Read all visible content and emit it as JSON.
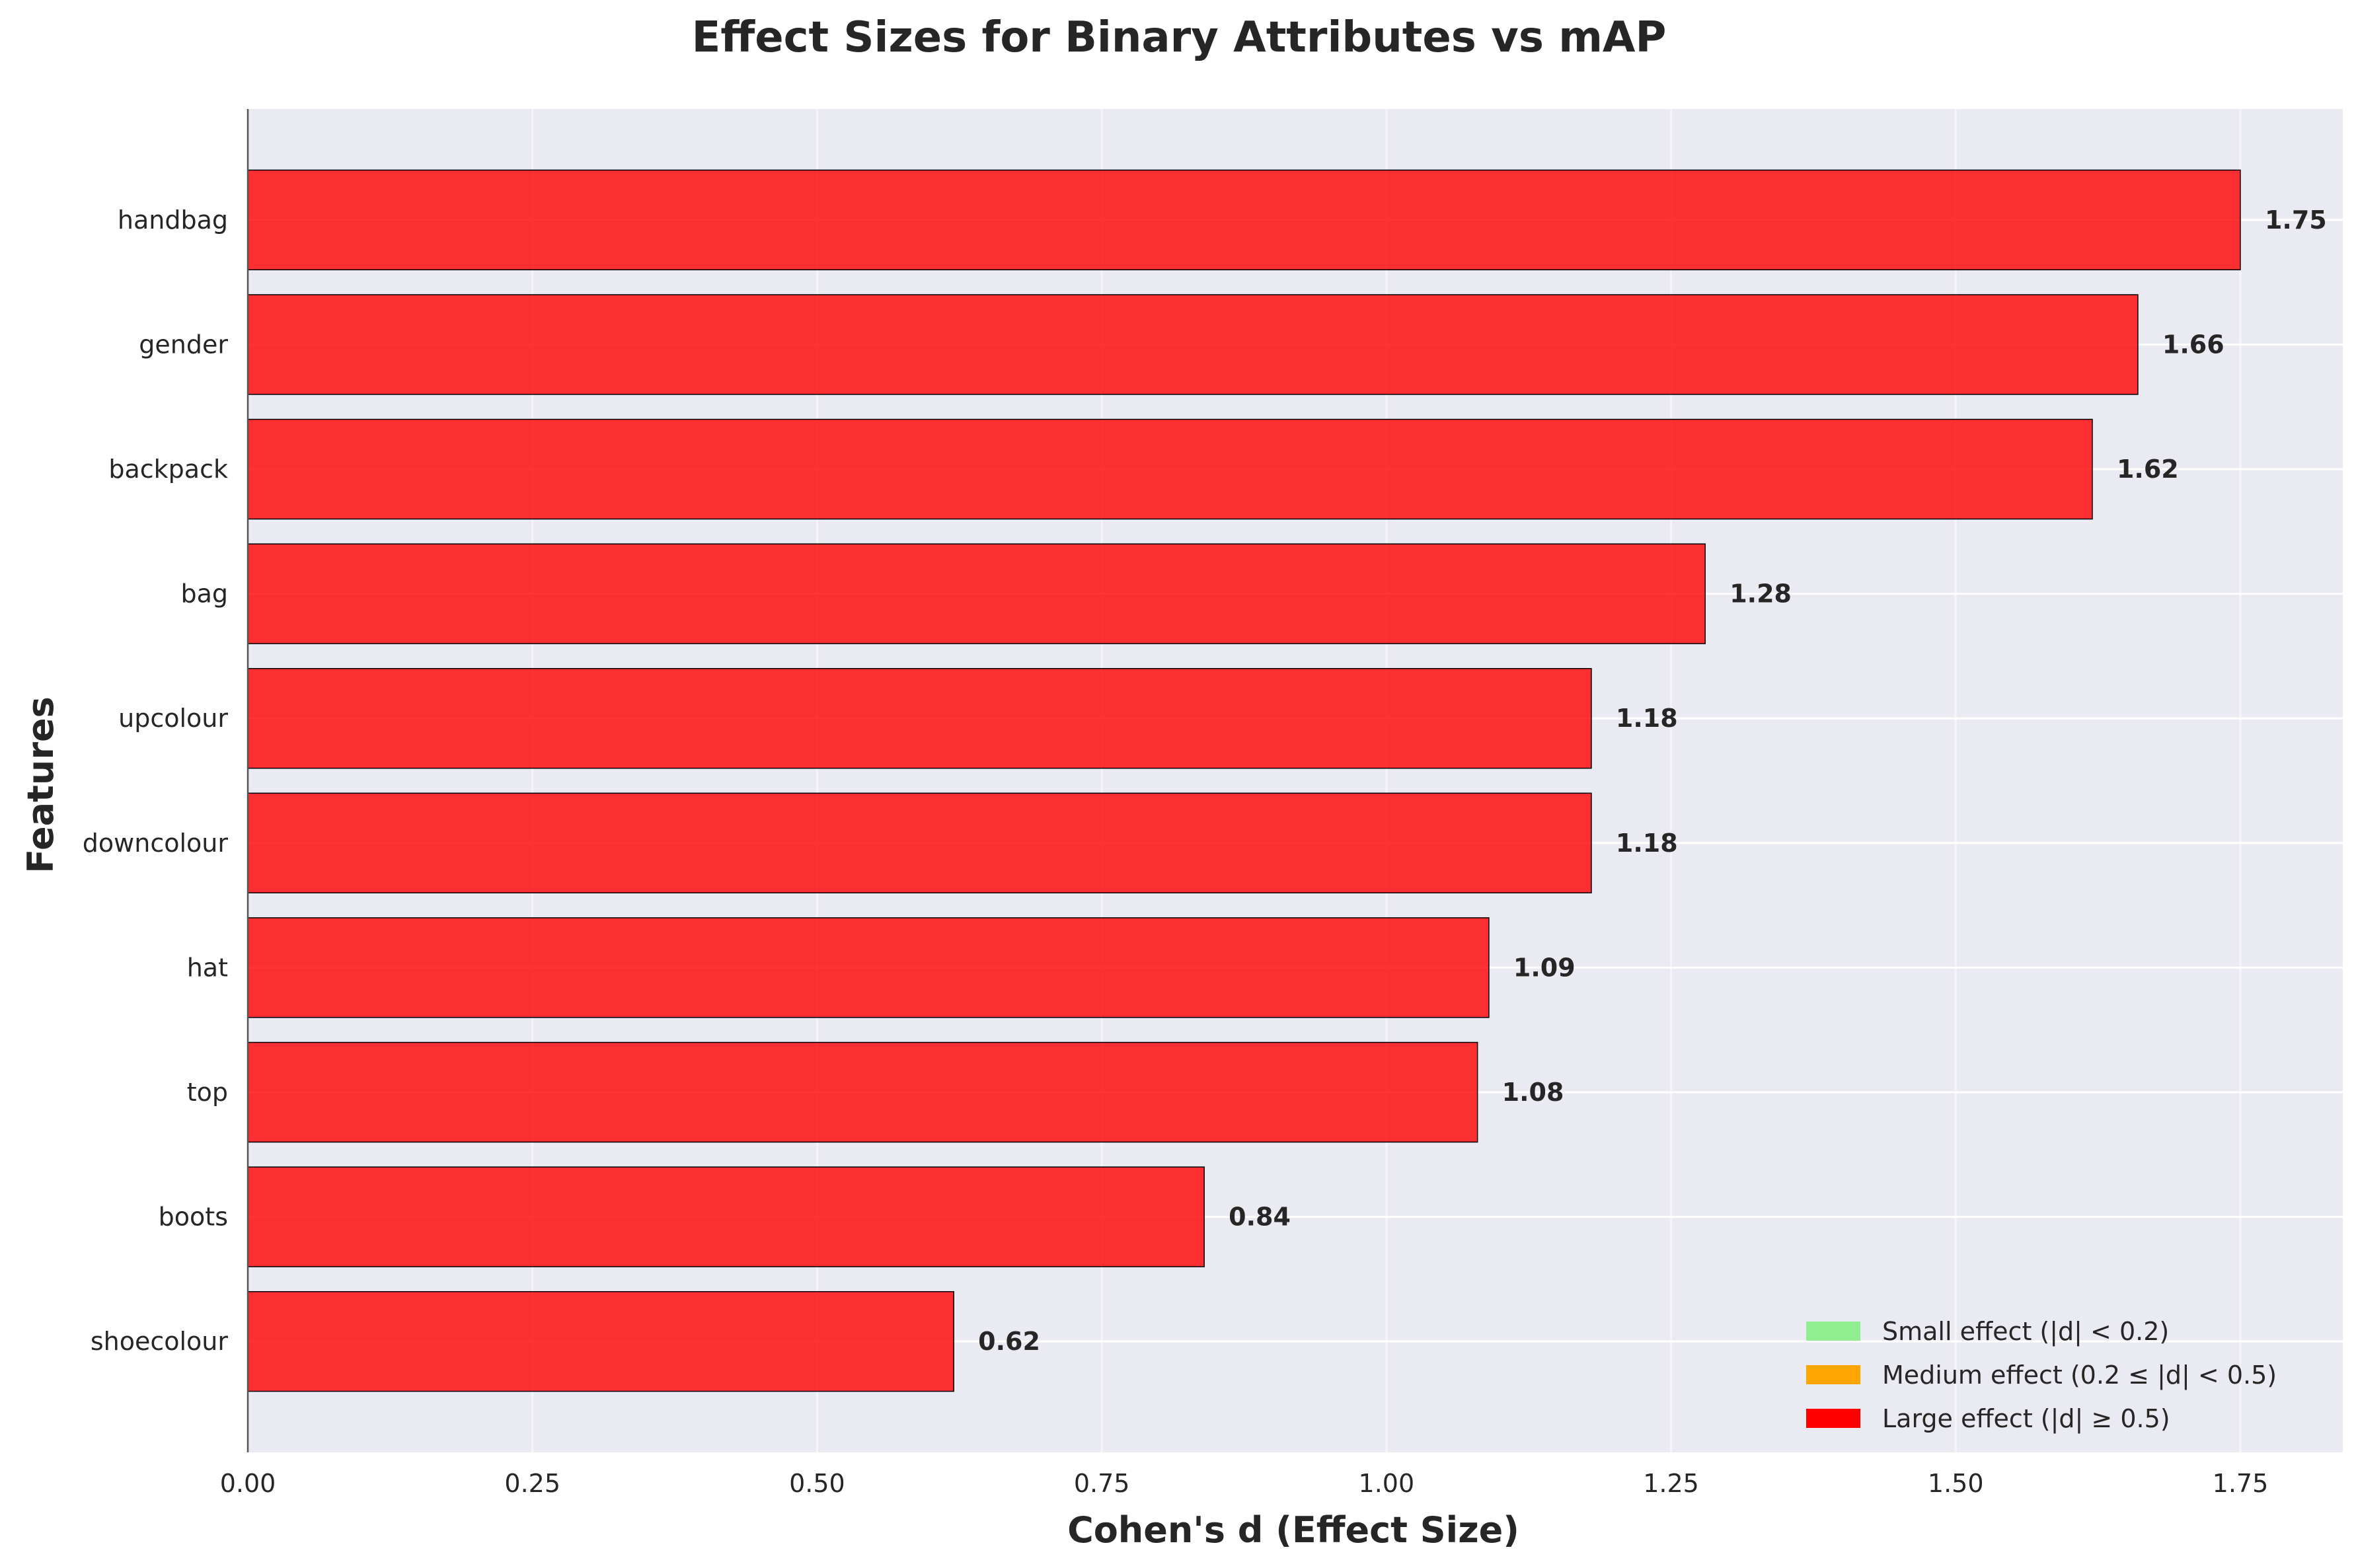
{
  "chart_data": {
    "type": "bar",
    "orientation": "horizontal",
    "title": "Effect Sizes for Binary Attributes vs mAP",
    "xlabel": "Cohen's d (Effect Size)",
    "ylabel": "Features",
    "xlim": [
      0,
      1.84
    ],
    "x_ticks": [
      "0.00",
      "0.25",
      "0.50",
      "0.75",
      "1.00",
      "1.25",
      "1.50",
      "1.75"
    ],
    "grid": true,
    "categories": [
      "handbag",
      "gender",
      "backpack",
      "bag",
      "upcolour",
      "downcolour",
      "hat",
      "top",
      "boots",
      "shoecolour"
    ],
    "values": [
      1.75,
      1.66,
      1.62,
      1.28,
      1.18,
      1.18,
      1.09,
      1.08,
      0.84,
      0.62
    ],
    "data_labels": [
      "1.75",
      "1.66",
      "1.62",
      "1.28",
      "1.18",
      "1.18",
      "1.09",
      "1.08",
      "0.84",
      "0.62"
    ],
    "bar_color": "#ff0000",
    "legend": {
      "position": "bottom-right",
      "entries": [
        {
          "label": "Small effect (|d| < 0.2)",
          "color": "#90ee90"
        },
        {
          "label": "Medium effect (0.2 ≤ |d| < 0.5)",
          "color": "#ffa500"
        },
        {
          "label": "Large effect (|d| ≥ 0.5)",
          "color": "#ff0000"
        }
      ]
    }
  },
  "colors": {
    "plot_background": "#eaeaf2",
    "grid": "#ffffff",
    "text": "#262626"
  }
}
